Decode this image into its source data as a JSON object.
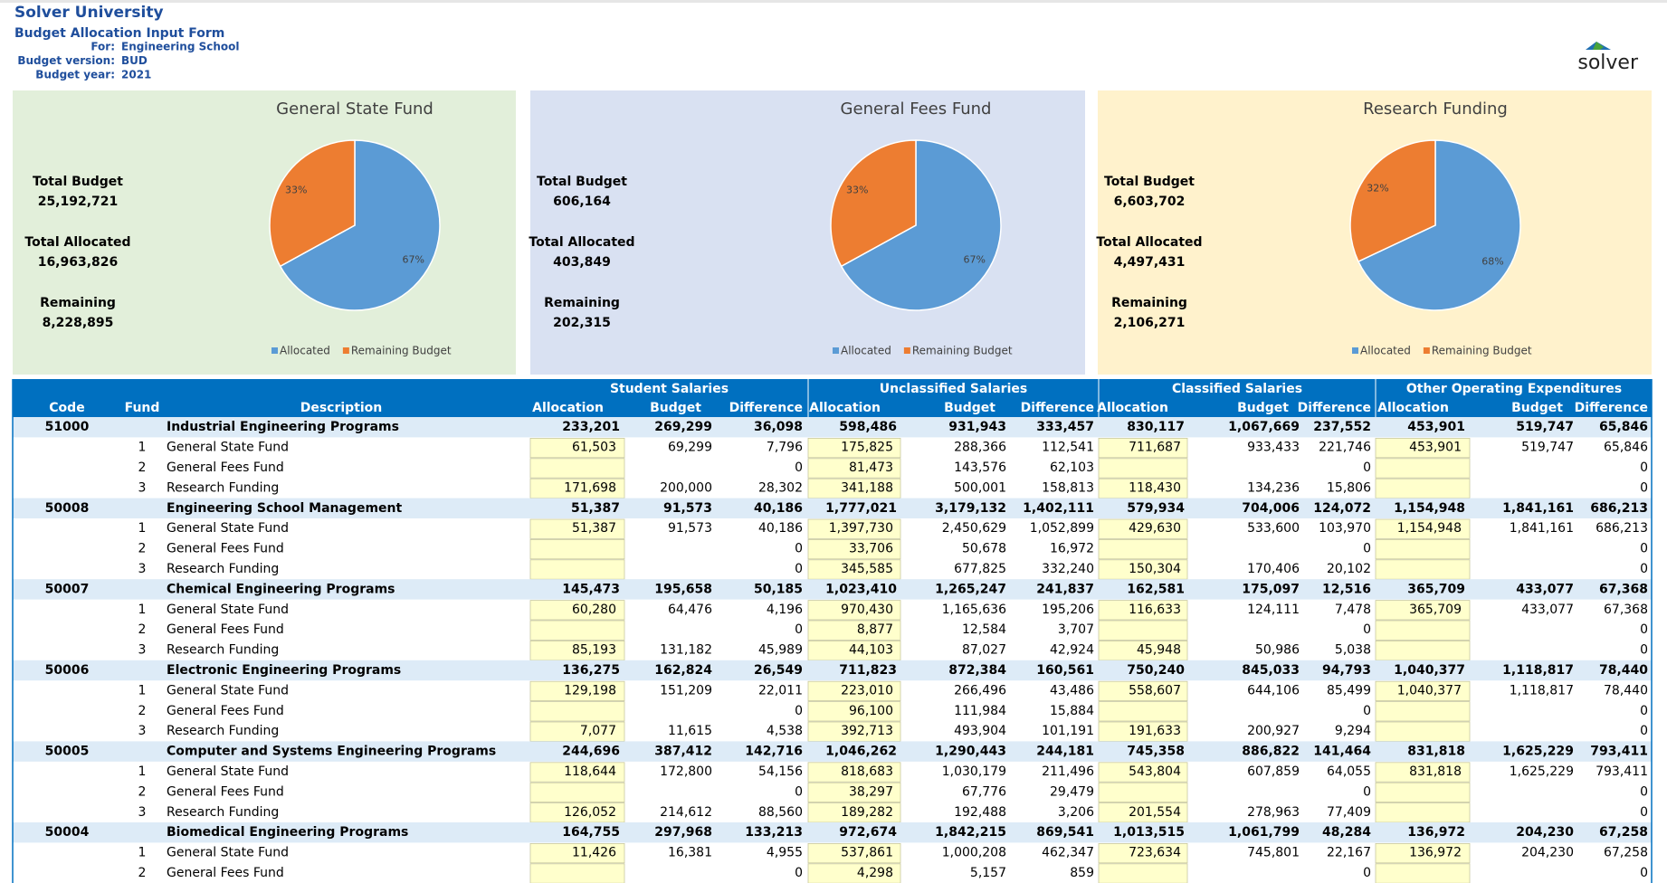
{
  "header": {
    "title": "Solver University",
    "subtitle": "Budget Allocation Input Form",
    "fields": [
      {
        "label": "For:",
        "value": "Engineering School"
      },
      {
        "label": "Budget version:",
        "value": "BUD"
      },
      {
        "label": "Budget year:",
        "value": "2021"
      }
    ],
    "logo": "solver"
  },
  "panels": [
    {
      "stats": [
        {
          "label": "Total Budget",
          "value": "25,192,721"
        },
        {
          "label": "Total Allocated",
          "value": "16,963,826"
        },
        {
          "label": "Remaining",
          "value": "8,228,895"
        }
      ]
    },
    {
      "stats": [
        {
          "label": "Total Budget",
          "value": "606,164"
        },
        {
          "label": "Total Allocated",
          "value": "403,849"
        },
        {
          "label": "Remaining",
          "value": "202,315"
        }
      ]
    },
    {
      "stats": [
        {
          "label": "Total Budget",
          "value": "6,603,702"
        },
        {
          "label": "Total Allocated",
          "value": "4,497,431"
        },
        {
          "label": "Remaining",
          "value": "2,106,271"
        }
      ]
    }
  ],
  "chart_data": [
    {
      "type": "pie",
      "title": "General State Fund",
      "categories": [
        "Allocated",
        "Remaining Budget"
      ],
      "values": [
        67,
        33
      ],
      "value_labels": [
        "67%",
        "33%"
      ],
      "colors": [
        "#5b9bd5",
        "#ed7d31"
      ],
      "legend": "bottom"
    },
    {
      "type": "pie",
      "title": "General Fees Fund",
      "categories": [
        "Allocated",
        "Remaining Budget"
      ],
      "values": [
        67,
        33
      ],
      "value_labels": [
        "67%",
        "33%"
      ],
      "colors": [
        "#5b9bd5",
        "#ed7d31"
      ],
      "legend": "bottom"
    },
    {
      "type": "pie",
      "title": "Research Funding",
      "categories": [
        "Allocated",
        "Remaining Budget"
      ],
      "values": [
        68,
        32
      ],
      "value_labels": [
        "68%",
        "32%"
      ],
      "colors": [
        "#5b9bd5",
        "#ed7d31"
      ],
      "legend": "bottom"
    }
  ],
  "table": {
    "groups": [
      "Student Salaries",
      "Unclassified Salaries",
      "Classified Salaries",
      "Other Operating Expenditures"
    ],
    "columns": [
      "Code",
      "Fund",
      "Description",
      "Allocation",
      "Budget",
      "Difference",
      "Allocation",
      "Budget",
      "Difference",
      "Allocation",
      "Budget",
      "Difference",
      "Allocation",
      "Budget",
      "Difference"
    ],
    "rows": [
      [
        "51000",
        null,
        "Industrial Engineering Programs",
        "233,201",
        "269,299",
        "36,098",
        "598,486",
        "931,943",
        "333,457",
        "830,117",
        "1,067,669",
        "237,552",
        "453,901",
        "519,747",
        "65,846"
      ],
      [
        null,
        "1",
        "General State Fund",
        "61,503",
        "69,299",
        "7,796",
        "175,825",
        "288,366",
        "112,541",
        "711,687",
        "933,433",
        "221,746",
        "453,901",
        "519,747",
        "65,846"
      ],
      [
        null,
        "2",
        "General Fees Fund",
        null,
        null,
        "0",
        "81,473",
        "143,576",
        "62,103",
        null,
        null,
        "0",
        null,
        null,
        "0"
      ],
      [
        null,
        "3",
        "Research Funding",
        "171,698",
        "200,000",
        "28,302",
        "341,188",
        "500,001",
        "158,813",
        "118,430",
        "134,236",
        "15,806",
        null,
        null,
        "0"
      ],
      [
        "50008",
        null,
        "Engineering School Management",
        "51,387",
        "91,573",
        "40,186",
        "1,777,021",
        "3,179,132",
        "1,402,111",
        "579,934",
        "704,006",
        "124,072",
        "1,154,948",
        "1,841,161",
        "686,213"
      ],
      [
        null,
        "1",
        "General State Fund",
        "51,387",
        "91,573",
        "40,186",
        "1,397,730",
        "2,450,629",
        "1,052,899",
        "429,630",
        "533,600",
        "103,970",
        "1,154,948",
        "1,841,161",
        "686,213"
      ],
      [
        null,
        "2",
        "General Fees Fund",
        null,
        null,
        "0",
        "33,706",
        "50,678",
        "16,972",
        null,
        null,
        "0",
        null,
        null,
        "0"
      ],
      [
        null,
        "3",
        "Research Funding",
        null,
        null,
        "0",
        "345,585",
        "677,825",
        "332,240",
        "150,304",
        "170,406",
        "20,102",
        null,
        null,
        "0"
      ],
      [
        "50007",
        null,
        "Chemical Engineering Programs",
        "145,473",
        "195,658",
        "50,185",
        "1,023,410",
        "1,265,247",
        "241,837",
        "162,581",
        "175,097",
        "12,516",
        "365,709",
        "433,077",
        "67,368"
      ],
      [
        null,
        "1",
        "General State Fund",
        "60,280",
        "64,476",
        "4,196",
        "970,430",
        "1,165,636",
        "195,206",
        "116,633",
        "124,111",
        "7,478",
        "365,709",
        "433,077",
        "67,368"
      ],
      [
        null,
        "2",
        "General Fees Fund",
        null,
        null,
        "0",
        "8,877",
        "12,584",
        "3,707",
        null,
        null,
        "0",
        null,
        null,
        "0"
      ],
      [
        null,
        "3",
        "Research Funding",
        "85,193",
        "131,182",
        "45,989",
        "44,103",
        "87,027",
        "42,924",
        "45,948",
        "50,986",
        "5,038",
        null,
        null,
        "0"
      ],
      [
        "50006",
        null,
        "Electronic Engineering Programs",
        "136,275",
        "162,824",
        "26,549",
        "711,823",
        "872,384",
        "160,561",
        "750,240",
        "845,033",
        "94,793",
        "1,040,377",
        "1,118,817",
        "78,440"
      ],
      [
        null,
        "1",
        "General State Fund",
        "129,198",
        "151,209",
        "22,011",
        "223,010",
        "266,496",
        "43,486",
        "558,607",
        "644,106",
        "85,499",
        "1,040,377",
        "1,118,817",
        "78,440"
      ],
      [
        null,
        "2",
        "General Fees Fund",
        null,
        null,
        "0",
        "96,100",
        "111,984",
        "15,884",
        null,
        null,
        "0",
        null,
        null,
        "0"
      ],
      [
        null,
        "3",
        "Research Funding",
        "7,077",
        "11,615",
        "4,538",
        "392,713",
        "493,904",
        "101,191",
        "191,633",
        "200,927",
        "9,294",
        null,
        null,
        "0"
      ],
      [
        "50005",
        null,
        "Computer and Systems Engineering Programs",
        "244,696",
        "387,412",
        "142,716",
        "1,046,262",
        "1,290,443",
        "244,181",
        "745,358",
        "886,822",
        "141,464",
        "831,818",
        "1,625,229",
        "793,411"
      ],
      [
        null,
        "1",
        "General State Fund",
        "118,644",
        "172,800",
        "54,156",
        "818,683",
        "1,030,179",
        "211,496",
        "543,804",
        "607,859",
        "64,055",
        "831,818",
        "1,625,229",
        "793,411"
      ],
      [
        null,
        "2",
        "General Fees Fund",
        null,
        null,
        "0",
        "38,297",
        "67,776",
        "29,479",
        null,
        null,
        "0",
        null,
        null,
        "0"
      ],
      [
        null,
        "3",
        "Research Funding",
        "126,052",
        "214,612",
        "88,560",
        "189,282",
        "192,488",
        "3,206",
        "201,554",
        "278,963",
        "77,409",
        null,
        null,
        "0"
      ],
      [
        "50004",
        null,
        "Biomedical Engineering Programs",
        "164,755",
        "297,968",
        "133,213",
        "972,674",
        "1,842,215",
        "869,541",
        "1,013,515",
        "1,061,799",
        "48,284",
        "136,972",
        "204,230",
        "67,258"
      ],
      [
        null,
        "1",
        "General State Fund",
        "11,426",
        "16,381",
        "4,955",
        "537,861",
        "1,000,208",
        "462,347",
        "723,634",
        "745,801",
        "22,167",
        "136,972",
        "204,230",
        "67,258"
      ],
      [
        null,
        "2",
        "General Fees Fund",
        null,
        null,
        "0",
        "4,298",
        "5,157",
        "859",
        null,
        null,
        "0",
        null,
        null,
        "0"
      ]
    ]
  }
}
